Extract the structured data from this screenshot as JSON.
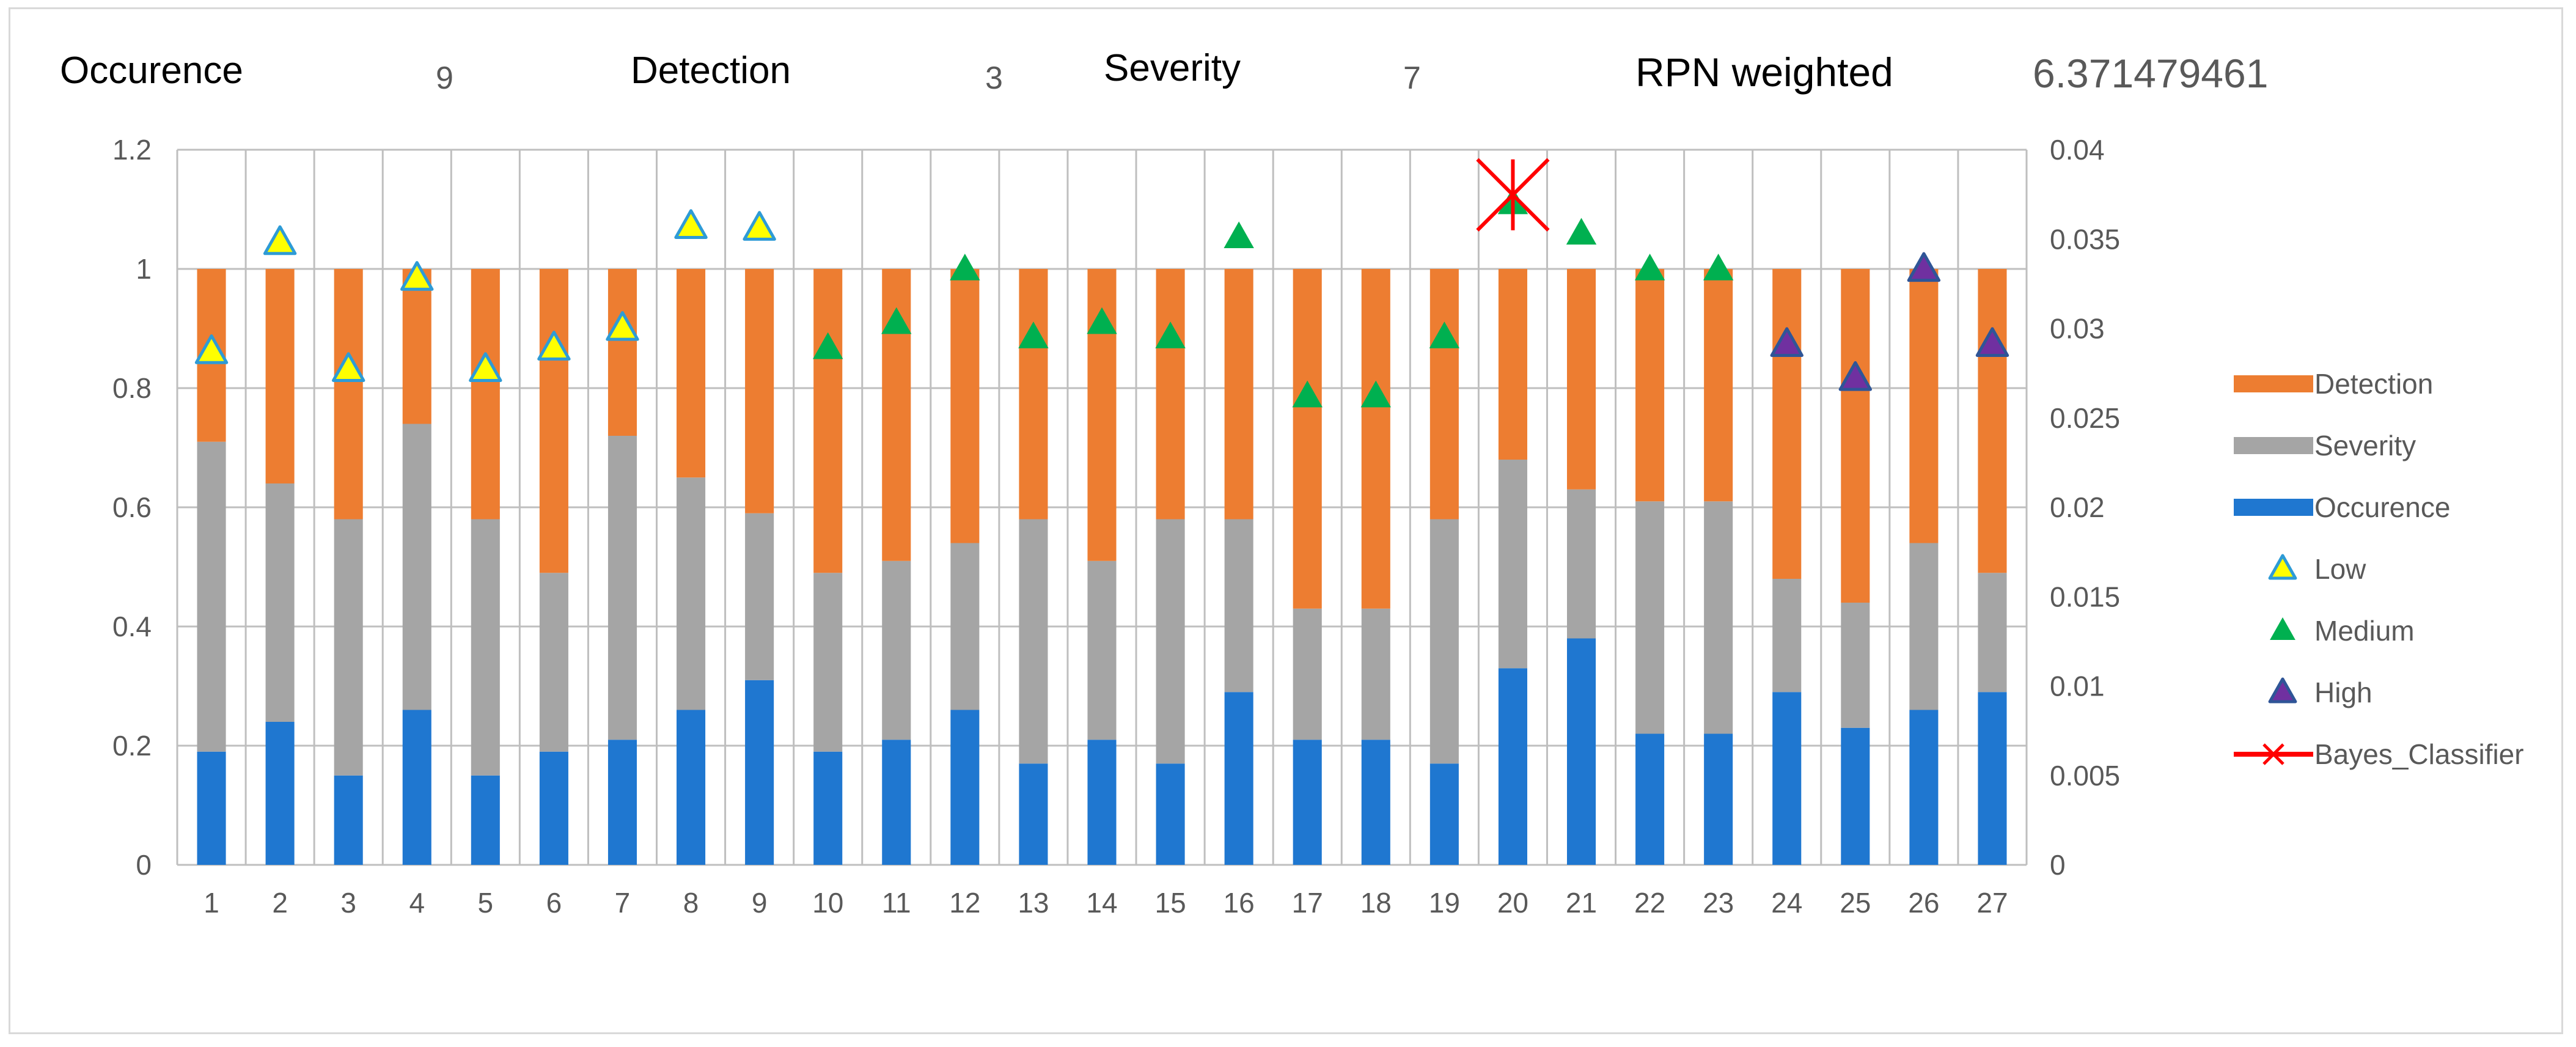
{
  "header": {
    "occurence_label": "Occurence",
    "occurence_value": "9",
    "detection_label": "Detection",
    "detection_value": "3",
    "severity_label": "Severity",
    "severity_value": "7",
    "rpn_label": "RPN weighted",
    "rpn_value": "6.371479461"
  },
  "colors": {
    "detection": "#ED7D31",
    "severity": "#A5A5A5",
    "occurence": "#1F77D0",
    "low_fill": "#FFFF00",
    "low_stroke": "#2E9BD6",
    "medium": "#00B050",
    "high_fill": "#7030A0",
    "high_stroke": "#2F5597",
    "bayes": "#FF0000",
    "grid": "#bfbfbf"
  },
  "chart_data": {
    "type": "bar",
    "stacked": true,
    "categories": [
      "1",
      "2",
      "3",
      "4",
      "5",
      "6",
      "7",
      "8",
      "9",
      "10",
      "11",
      "12",
      "13",
      "14",
      "15",
      "16",
      "17",
      "18",
      "19",
      "20",
      "21",
      "22",
      "23",
      "24",
      "25",
      "26",
      "27"
    ],
    "series": [
      {
        "name": "Occurence",
        "axis": "left",
        "values": [
          0.19,
          0.24,
          0.15,
          0.26,
          0.15,
          0.19,
          0.21,
          0.26,
          0.31,
          0.19,
          0.21,
          0.26,
          0.17,
          0.21,
          0.17,
          0.29,
          0.21,
          0.21,
          0.17,
          0.33,
          0.38,
          0.22,
          0.22,
          0.29,
          0.23,
          0.26,
          0.29
        ]
      },
      {
        "name": "Severity",
        "axis": "left",
        "values": [
          0.52,
          0.4,
          0.43,
          0.48,
          0.43,
          0.3,
          0.51,
          0.39,
          0.28,
          0.3,
          0.3,
          0.28,
          0.41,
          0.3,
          0.41,
          0.29,
          0.22,
          0.22,
          0.41,
          0.35,
          0.25,
          0.39,
          0.39,
          0.19,
          0.21,
          0.28,
          0.2
        ]
      },
      {
        "name": "Detection",
        "axis": "left",
        "values": [
          0.29,
          0.36,
          0.42,
          0.26,
          0.42,
          0.51,
          0.28,
          0.35,
          0.41,
          0.51,
          0.49,
          0.46,
          0.42,
          0.49,
          0.42,
          0.42,
          0.57,
          0.57,
          0.42,
          0.32,
          0.37,
          0.39,
          0.39,
          0.52,
          0.56,
          0.46,
          0.51
        ]
      }
    ],
    "risk_markers": {
      "axis": "right",
      "values": [
        0.0287,
        0.0348,
        0.0277,
        0.0328,
        0.0277,
        0.0289,
        0.03,
        0.0357,
        0.0356,
        0.0289,
        0.0303,
        0.0333,
        0.0295,
        0.0303,
        0.0295,
        0.0351,
        0.0262,
        0.0262,
        0.0295,
        0.037,
        0.0353,
        0.0333,
        0.0333,
        0.0291,
        0.0272,
        0.0333,
        0.0291
      ],
      "classes": [
        "Low",
        "Low",
        "Low",
        "Low",
        "Low",
        "Low",
        "Low",
        "Low",
        "Low",
        "Medium",
        "Medium",
        "Medium",
        "Medium",
        "Medium",
        "Medium",
        "Medium",
        "Medium",
        "Medium",
        "Medium",
        "Medium",
        "Medium",
        "Medium",
        "Medium",
        "High",
        "High",
        "High",
        "High"
      ]
    },
    "bayes_classifier": {
      "category": "20",
      "value": 0.037
    },
    "legend": [
      "Detection",
      "Severity",
      "Occurence",
      "Low",
      "Medium",
      "High",
      "Bayes_Classifier"
    ],
    "legend_position": "right",
    "y_left": {
      "min": 0,
      "max": 1.2,
      "ticks": [
        "0",
        "0.2",
        "0.4",
        "0.6",
        "0.8",
        "1",
        "1.2"
      ]
    },
    "y_right": {
      "min": 0,
      "max": 0.04,
      "ticks": [
        "0",
        "0.005",
        "0.01",
        "0.015",
        "0.02",
        "0.025",
        "0.03",
        "0.035",
        "0.04"
      ]
    },
    "vertical_grid": true,
    "horizontal_grid": true
  }
}
